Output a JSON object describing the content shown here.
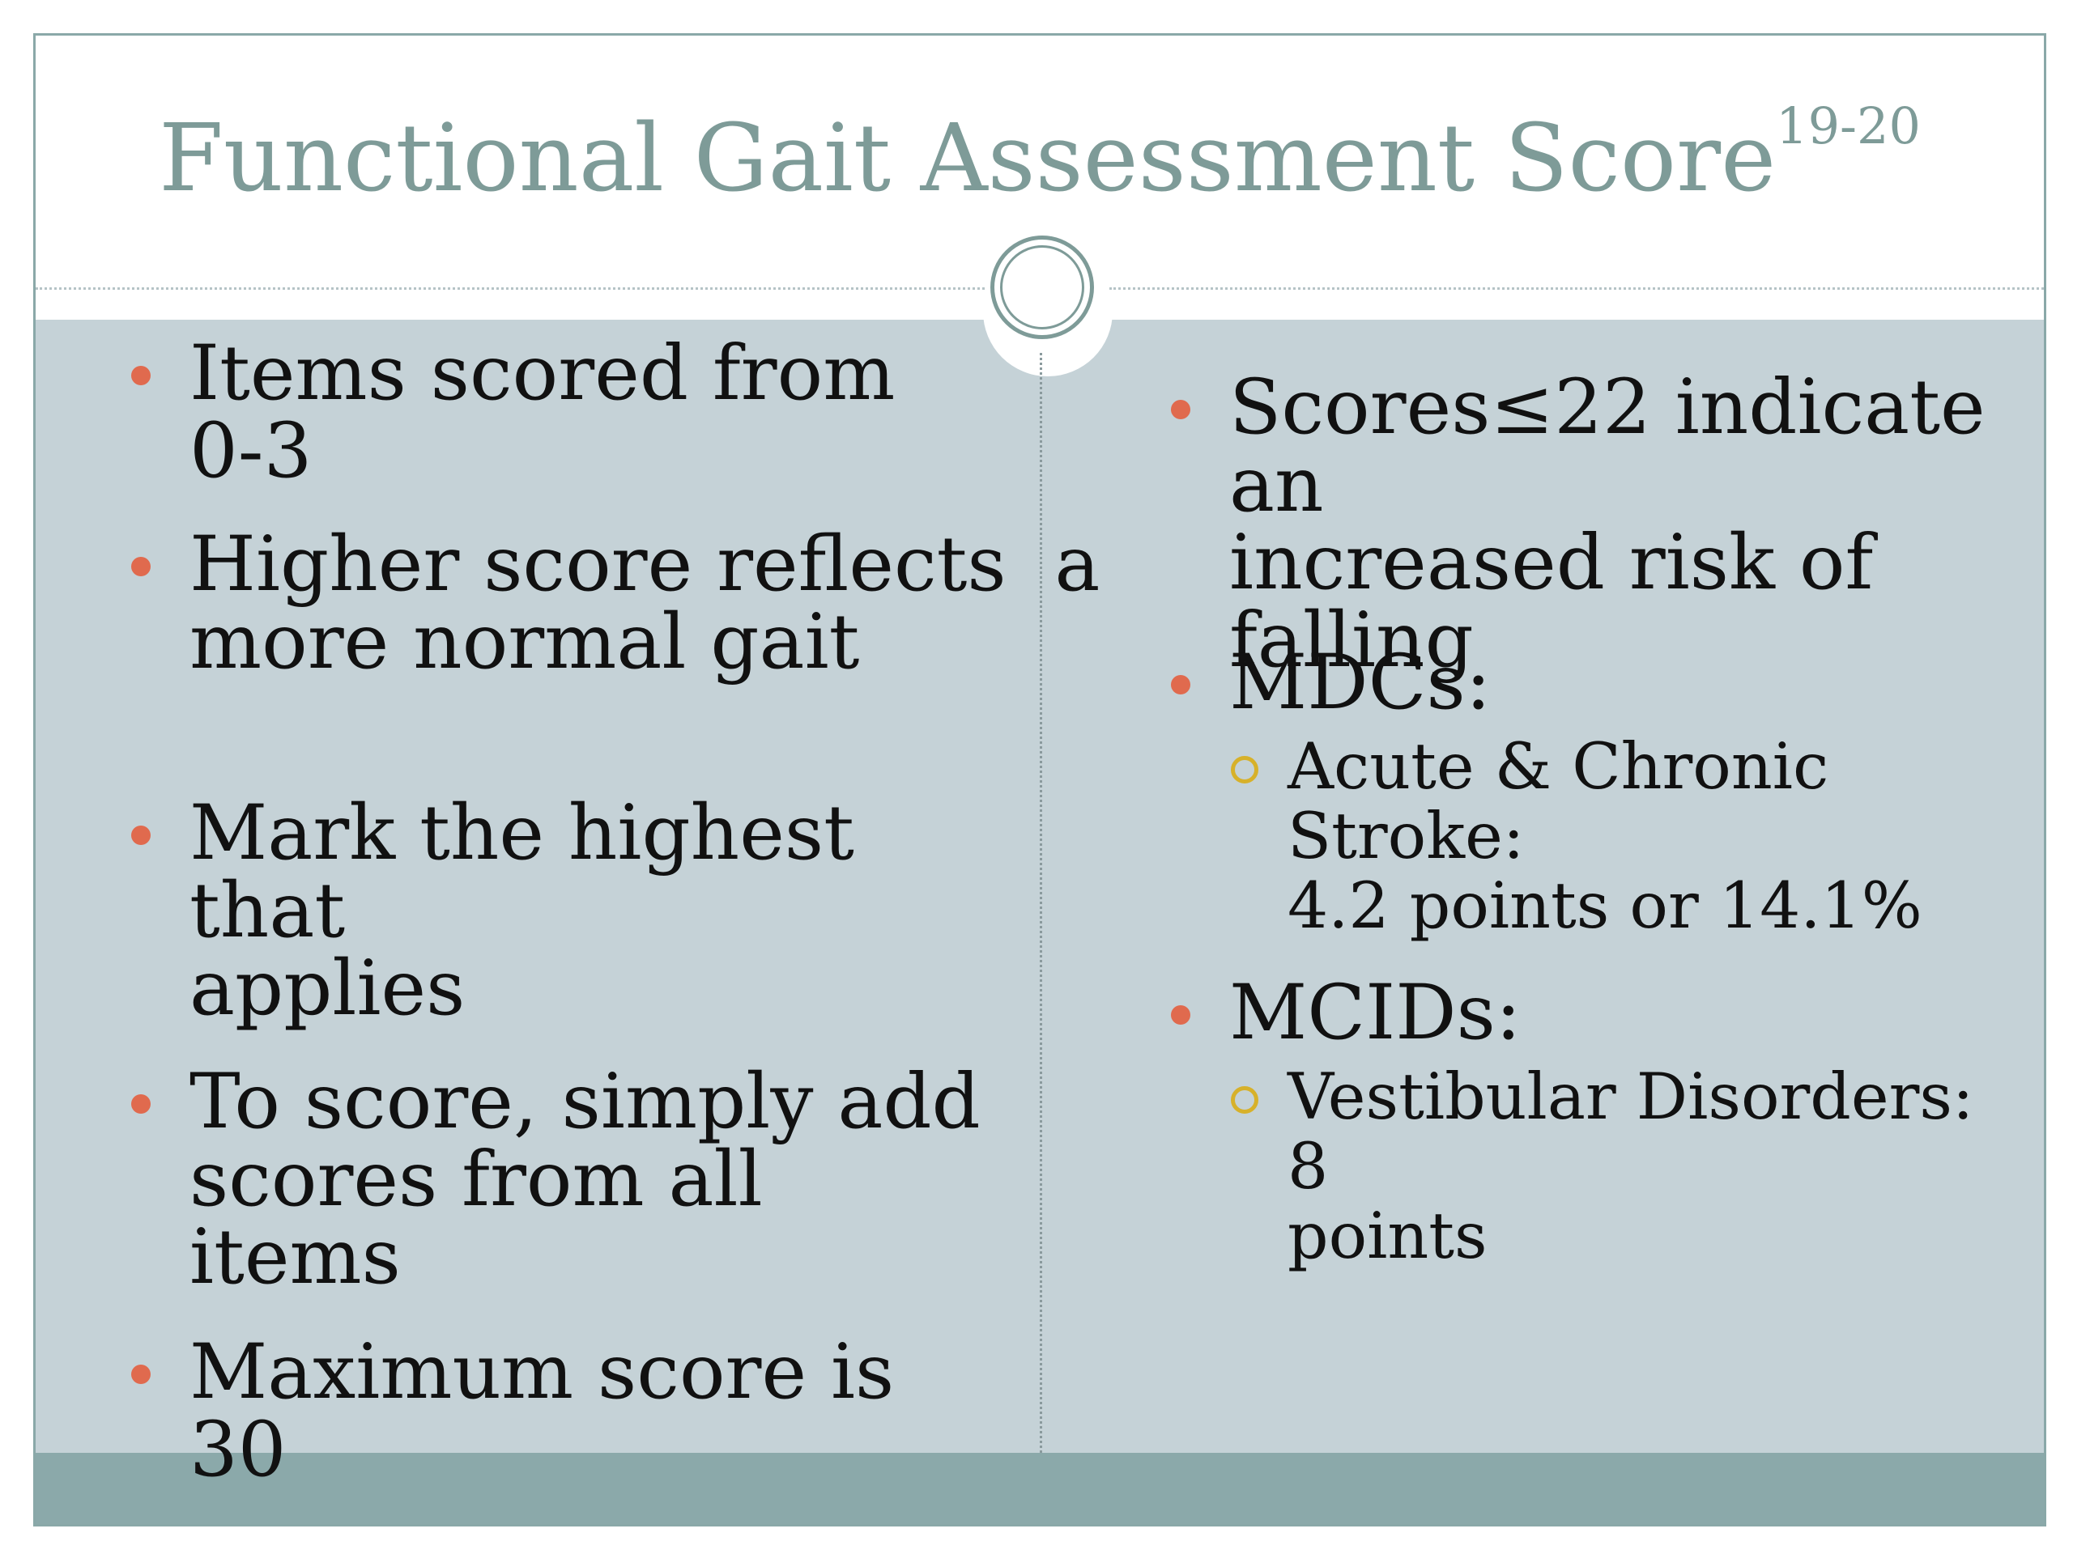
{
  "title": {
    "text": "Functional Gait Assessment Score",
    "superscript": "19-20"
  },
  "left_column": {
    "items": [
      {
        "lines": [
          "Items scored from 0-3"
        ]
      },
      {
        "lines": [
          "Higher score reflects  a",
          "more normal gait"
        ]
      },
      {
        "lines": [
          "Mark the highest that",
          "applies"
        ]
      },
      {
        "lines": [
          "To score, simply add",
          "scores from all items"
        ]
      },
      {
        "lines": [
          "Maximum score is 30"
        ]
      }
    ]
  },
  "right_column": {
    "items": [
      {
        "lines": [
          "Scores≤22 indicate an",
          "increased risk of falling"
        ]
      },
      {
        "lines": [
          "MDCs:"
        ]
      },
      {
        "lines": [
          "MCIDs:"
        ]
      }
    ],
    "subitems": [
      {
        "lines": [
          "Acute & Chronic Stroke:",
          "4.2 points or 14.1%"
        ]
      },
      {
        "lines": [
          "Vestibular Disorders: 8",
          "points"
        ]
      }
    ]
  },
  "colors": {
    "title": "#7e9b98",
    "content_background": "#c5d2d7",
    "footer_band": "#8ba9aa",
    "primary_bullet": "#e06a4e",
    "secondary_bullet": "#d7b12a"
  },
  "icons": {
    "primary_bullet": "filled-circle-bullet",
    "secondary_bullet": "hollow-circle-bullet",
    "divider_ornament": "double-ring-ornament"
  }
}
